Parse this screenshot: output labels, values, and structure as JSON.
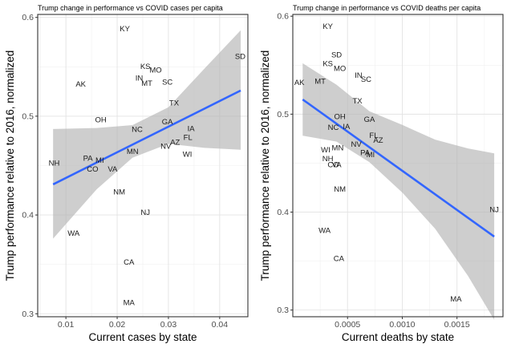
{
  "chart_data": [
    {
      "type": "scatter",
      "title": "Trump change in performance vs COVID cases per capita",
      "xlabel": "Current cases by state",
      "ylabel": "Trump performance relative to 2016, normalized",
      "xlim": [
        0.0045,
        0.0455
      ],
      "ylim": [
        0.297,
        0.603
      ],
      "xticks": [
        0.01,
        0.02,
        0.03,
        0.04
      ],
      "xtick_labels": [
        "0.01",
        "0.02",
        "0.03",
        "0.04"
      ],
      "yticks": [
        0.3,
        0.4,
        0.5,
        0.6
      ],
      "ytick_labels": [
        "0.3",
        "0.4",
        "0.5",
        "0.6"
      ],
      "grid": true,
      "trend": {
        "x": [
          0.0075,
          0.0441
        ],
        "y": [
          0.431,
          0.526
        ]
      },
      "band": {
        "x": [
          0.0075,
          0.016,
          0.023,
          0.03,
          0.037,
          0.0441
        ],
        "lower": [
          0.376,
          0.426,
          0.458,
          0.472,
          0.468,
          0.466
        ],
        "upper": [
          0.487,
          0.488,
          0.491,
          0.509,
          0.548,
          0.587
        ]
      },
      "points": [
        {
          "label": "KY",
          "x": 0.0215,
          "y": 0.588
        },
        {
          "label": "SD",
          "x": 0.044,
          "y": 0.56
        },
        {
          "label": "KS",
          "x": 0.0255,
          "y": 0.55
        },
        {
          "label": "MO",
          "x": 0.0275,
          "y": 0.546
        },
        {
          "label": "IN",
          "x": 0.0243,
          "y": 0.538
        },
        {
          "label": "MT",
          "x": 0.0258,
          "y": 0.533
        },
        {
          "label": "SC",
          "x": 0.0298,
          "y": 0.534
        },
        {
          "label": "AK",
          "x": 0.0129,
          "y": 0.532
        },
        {
          "label": "TX",
          "x": 0.0311,
          "y": 0.513
        },
        {
          "label": "OH",
          "x": 0.0168,
          "y": 0.496
        },
        {
          "label": "GA",
          "x": 0.0298,
          "y": 0.494
        },
        {
          "label": "NC",
          "x": 0.0239,
          "y": 0.486
        },
        {
          "label": "IA",
          "x": 0.0344,
          "y": 0.487
        },
        {
          "label": "FL",
          "x": 0.0338,
          "y": 0.478
        },
        {
          "label": "AZ",
          "x": 0.0313,
          "y": 0.473
        },
        {
          "label": "NV",
          "x": 0.0295,
          "y": 0.469
        },
        {
          "label": "MN",
          "x": 0.023,
          "y": 0.464
        },
        {
          "label": "WI",
          "x": 0.0337,
          "y": 0.461
        },
        {
          "label": "PA",
          "x": 0.0143,
          "y": 0.457
        },
        {
          "label": "MI",
          "x": 0.0166,
          "y": 0.455
        },
        {
          "label": "NH",
          "x": 0.0077,
          "y": 0.452
        },
        {
          "label": "CO",
          "x": 0.0152,
          "y": 0.446
        },
        {
          "label": "VA",
          "x": 0.0191,
          "y": 0.446
        },
        {
          "label": "NM",
          "x": 0.0204,
          "y": 0.423
        },
        {
          "label": "NJ",
          "x": 0.0255,
          "y": 0.402
        },
        {
          "label": "WA",
          "x": 0.0115,
          "y": 0.381
        },
        {
          "label": "CA",
          "x": 0.0223,
          "y": 0.352
        },
        {
          "label": "MA",
          "x": 0.0223,
          "y": 0.311
        }
      ]
    },
    {
      "type": "scatter",
      "title": "Trump change in performance vs COVID deaths per capita",
      "xlabel": "Current deaths by state",
      "ylabel": "Trump performance relative to 2016, normalized",
      "xlim": [
        0.0,
        0.00192
      ],
      "ylim": [
        0.2932,
        0.6018
      ],
      "xticks": [
        0.0005,
        0.001,
        0.0015
      ],
      "xtick_labels": [
        "0.0005",
        "0.0010",
        "0.0015"
      ],
      "yticks": [
        0.3,
        0.4,
        0.5,
        0.6
      ],
      "ytick_labels": [
        "0.3",
        "0.4",
        "0.5",
        "0.6"
      ],
      "grid": true,
      "trend": {
        "x": [
          9e-05,
          0.00184
        ],
        "y": [
          0.515,
          0.375
        ]
      },
      "band": {
        "x": [
          9e-05,
          0.0004,
          0.0007,
          0.001,
          0.0013,
          0.0016,
          0.00184
        ],
        "lower": [
          0.478,
          0.472,
          0.451,
          0.42,
          0.383,
          0.335,
          0.29
        ],
        "upper": [
          0.552,
          0.53,
          0.503,
          0.489,
          0.474,
          0.465,
          0.46
        ]
      },
      "points": [
        {
          "label": "KY",
          "x": 0.00032,
          "y": 0.589
        },
        {
          "label": "SD",
          "x": 0.0004,
          "y": 0.56
        },
        {
          "label": "KS",
          "x": 0.00032,
          "y": 0.551
        },
        {
          "label": "MO",
          "x": 0.00043,
          "y": 0.546
        },
        {
          "label": "IN",
          "x": 0.0006,
          "y": 0.539
        },
        {
          "label": "SC",
          "x": 0.00067,
          "y": 0.535
        },
        {
          "label": "AK",
          "x": 6e-05,
          "y": 0.532
        },
        {
          "label": "MT",
          "x": 0.00025,
          "y": 0.533
        },
        {
          "label": "TX",
          "x": 0.00059,
          "y": 0.513
        },
        {
          "label": "OH",
          "x": 0.00043,
          "y": 0.497
        },
        {
          "label": "GA",
          "x": 0.0007,
          "y": 0.494
        },
        {
          "label": "NC",
          "x": 0.00037,
          "y": 0.486
        },
        {
          "label": "IA",
          "x": 0.00049,
          "y": 0.487
        },
        {
          "label": "FL",
          "x": 0.00074,
          "y": 0.478
        },
        {
          "label": "AZ",
          "x": 0.00078,
          "y": 0.473
        },
        {
          "label": "NV",
          "x": 0.00058,
          "y": 0.469
        },
        {
          "label": "MN",
          "x": 0.00041,
          "y": 0.465
        },
        {
          "label": "WI",
          "x": 0.0003,
          "y": 0.463
        },
        {
          "label": "PA",
          "x": 0.00066,
          "y": 0.46
        },
        {
          "label": "MI",
          "x": 0.00071,
          "y": 0.458
        },
        {
          "label": "NH",
          "x": 0.00032,
          "y": 0.454
        },
        {
          "label": "CO",
          "x": 0.00037,
          "y": 0.448
        },
        {
          "label": "VA",
          "x": 0.0004,
          "y": 0.448
        },
        {
          "label": "NM",
          "x": 0.00043,
          "y": 0.423
        },
        {
          "label": "NJ",
          "x": 0.00184,
          "y": 0.402
        },
        {
          "label": "WA",
          "x": 0.00029,
          "y": 0.381
        },
        {
          "label": "CA",
          "x": 0.00042,
          "y": 0.352
        },
        {
          "label": "MA",
          "x": 0.00149,
          "y": 0.311
        }
      ]
    }
  ]
}
